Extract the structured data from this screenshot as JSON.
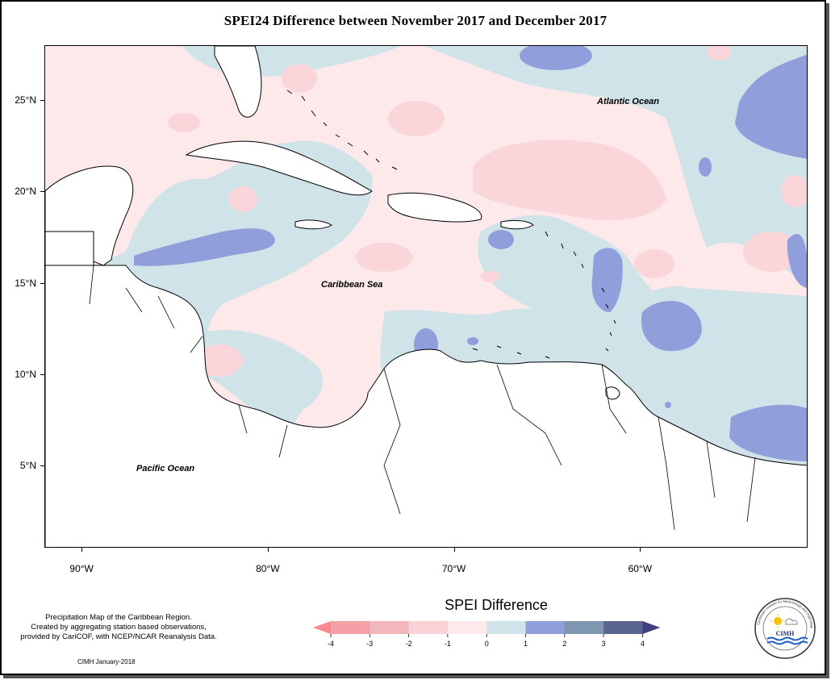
{
  "title": "SPEI24 Difference between November 2017 and December 2017",
  "map": {
    "lat_range": [
      0.5,
      28
    ],
    "lon_range": [
      -92,
      -51
    ],
    "lat_ticks": [
      {
        "value": 25,
        "label": "25°N"
      },
      {
        "value": 20,
        "label": "20°N"
      },
      {
        "value": 15,
        "label": "15°N"
      },
      {
        "value": 10,
        "label": "10°N"
      },
      {
        "value": 5,
        "label": "5°N"
      }
    ],
    "lon_ticks": [
      {
        "value": -90,
        "label": "90°W"
      },
      {
        "value": -80,
        "label": "80°W"
      },
      {
        "value": -70,
        "label": "70°W"
      },
      {
        "value": -60,
        "label": "60°W"
      }
    ],
    "labels": {
      "atlantic": "Atlantic Ocean",
      "caribbean": "Caribbean Sea",
      "pacific": "Pacific Ocean"
    },
    "colors": {
      "pink_dark": "#f4b4bc",
      "pink_mid": "#fad6da",
      "pink_light": "#fde8ea",
      "blue_light": "#cfe3e8",
      "blue_mid": "#909fdc",
      "land": "#ffffff"
    }
  },
  "description": {
    "line1": "Precipitation Map of the Caribbean Region.",
    "line2": "Created by aggregating station based observations,",
    "line3": "provided by CariCOF, with NCEP/NCAR Reanalysis Data."
  },
  "credit": "CIMH January-2018",
  "legend": {
    "title": "SPEI Difference",
    "classes": [
      {
        "color": "#f4a0a6"
      },
      {
        "color": "#f1b7bb"
      },
      {
        "color": "#f8d2d6"
      },
      {
        "color": "#fde8ea"
      },
      {
        "color": "#cfe3e8"
      },
      {
        "color": "#909fdc"
      },
      {
        "color": "#7e96b0"
      },
      {
        "color": "#5b6690"
      }
    ],
    "left_arrow_color": "#f68a90",
    "right_arrow_color": "#3d3f80",
    "ticks": [
      "-4",
      "-3",
      "-2",
      "-1",
      "0",
      "1",
      "2",
      "3",
      "4"
    ]
  },
  "logo": {
    "text": "CIMH",
    "ring_text": "Caribbean Institute for Meteorology and Hydrology"
  }
}
